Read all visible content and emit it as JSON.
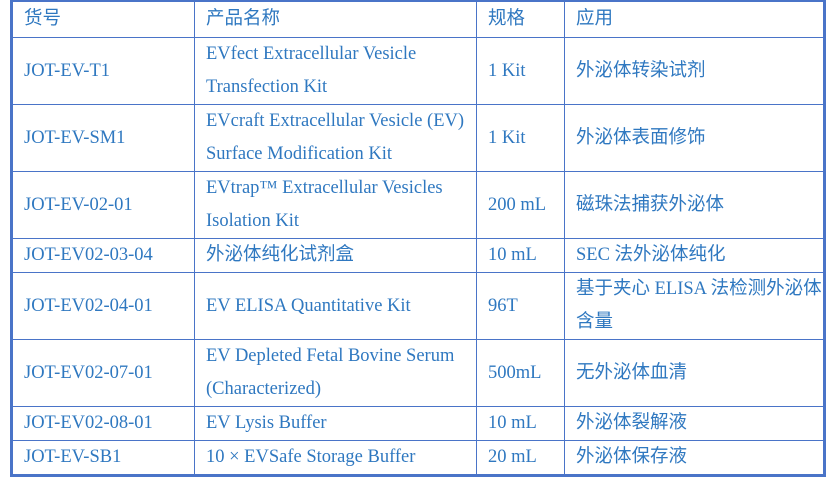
{
  "header": [
    "货号",
    "产品名称",
    "规格",
    "应用"
  ],
  "rows": [
    [
      "JOT-EV-T1",
      "EVfect Extracellular Vesicle Transfection Kit",
      "1 Kit",
      "外泌体转染试剂"
    ],
    [
      "JOT-EV-SM1",
      "EVcraft Extracellular Vesicle (EV) Surface Modification Kit",
      "1 Kit",
      "外泌体表面修饰"
    ],
    [
      "JOT-EV-02-01",
      "EVtrap™ Extracellular Vesicles Isolation Kit",
      "200 mL",
      "磁珠法捕获外泌体"
    ],
    [
      "JOT-EV02-03-04",
      "外泌体纯化试剂盒",
      "10 mL",
      "SEC 法外泌体纯化"
    ],
    [
      "JOT-EV02-04-01",
      "EV ELISA Quantitative Kit",
      "96T",
      "基于夹心 ELISA 法检测外泌体含量"
    ],
    [
      "JOT-EV02-07-01",
      "EV Depleted Fetal Bovine Serum (Characterized)",
      "500mL",
      "无外泌体血清"
    ],
    [
      "JOT-EV02-08-01",
      "EV Lysis Buffer",
      "10 mL",
      "外泌体裂解液"
    ],
    [
      "JOT-EV-SB1",
      "10 × EVSafe Storage Buffer",
      "20 mL",
      "外泌体保存液"
    ]
  ],
  "colors": {
    "border": "#4a74c8",
    "text": "#2f78c0"
  }
}
